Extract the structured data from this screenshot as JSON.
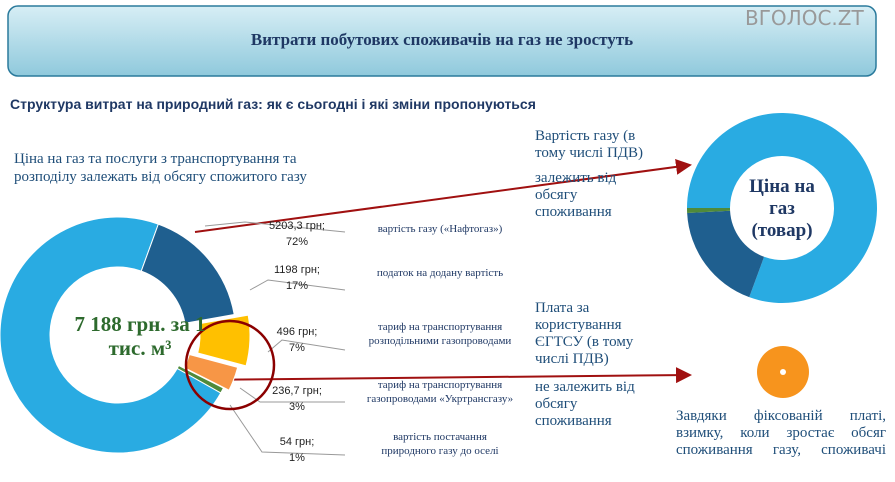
{
  "header": {
    "title": "Витрати побутових споживачів на газ не зростуть",
    "logo": "ВГОЛОС.ZT"
  },
  "subtitle": "Структура витрат на природний газ: як є сьогодні і які зміни пропонуються",
  "left_note": "Ціна на газ та послуги з транспортування та розподілу залежать від обсягу спожитого газу",
  "chart_data": {
    "type": "pie",
    "center_label": "7 188 грн. за 1 тис. м³",
    "categories": [
      "вартість газу («Нафтогаз»)",
      "податок на додану вартість",
      "тариф на транспортування розподільними газопроводами",
      "тариф на транспортування газопроводами «Укртрансгазу»",
      "вартість постачання природного газу до оселі"
    ],
    "values": [
      5203.3,
      1198,
      496,
      236.7,
      54
    ],
    "value_labels": [
      "5203,3 грн;",
      "1198 грн;",
      "496 грн;",
      "236,7 грн;",
      "54 грн;"
    ],
    "shares": [
      72,
      17,
      7,
      3,
      1
    ],
    "share_labels": [
      "72%",
      "17%",
      "7%",
      "3%",
      "1%"
    ],
    "colors": [
      "#29abe2",
      "#1f5f8f",
      "#ffc000",
      "#f79646",
      "#4f8a3a"
    ]
  },
  "right_panel": {
    "gas_cost": "Вартість газу (в тому числі ПДВ)",
    "gas_cost_note": "залежить від обсягу споживання",
    "price_label": "Ціна на газ (товар)",
    "transport_fee": "Плата за користування ЄГТСУ (в тому числі ПДВ)",
    "transport_fee_note": "не залежить від обсягу споживання",
    "bottom_note": "Завдяки фіксованій платі, взимку, коли зростає обсяг споживання газу, споживачі"
  }
}
